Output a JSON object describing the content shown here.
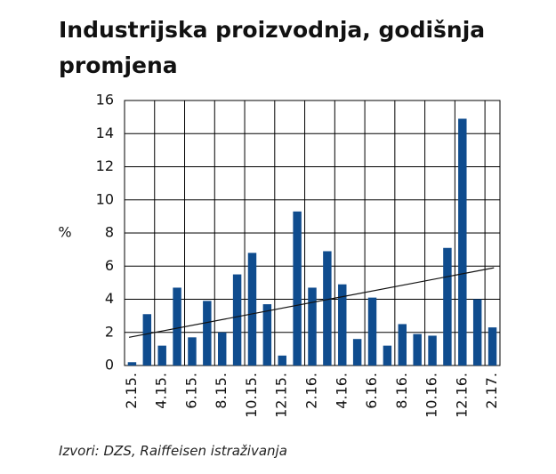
{
  "chart_data": {
    "type": "bar",
    "title": "Industrijska proizvodnja, godišnja promjena",
    "y_label": "%",
    "source": "Izvori: DZS, Raiffeisen istraživanja",
    "categories": [
      "2.15.",
      null,
      "4.15.",
      null,
      "6.15.",
      null,
      "8.15.",
      null,
      "10.15.",
      null,
      "12.15.",
      null,
      "2.16.",
      null,
      "4.16.",
      null,
      "6.16.",
      null,
      "8.16.",
      null,
      "10.16.",
      null,
      "12.16.",
      null,
      "2.17."
    ],
    "values": [
      0.2,
      3.1,
      1.2,
      4.7,
      1.7,
      3.9,
      2.0,
      5.5,
      6.8,
      3.7,
      0.6,
      9.3,
      4.7,
      6.9,
      4.9,
      1.6,
      4.1,
      1.2,
      2.5,
      1.9,
      1.8,
      7.1,
      14.9,
      4.0,
      2.3
    ],
    "color": "#0f4c8e",
    "trendline": {
      "start": 1.7,
      "end": 5.9
    },
    "ylim": [
      0,
      16
    ],
    "yticks": [
      0,
      2,
      4,
      6,
      8,
      10,
      12,
      14,
      16
    ],
    "grid": true
  }
}
